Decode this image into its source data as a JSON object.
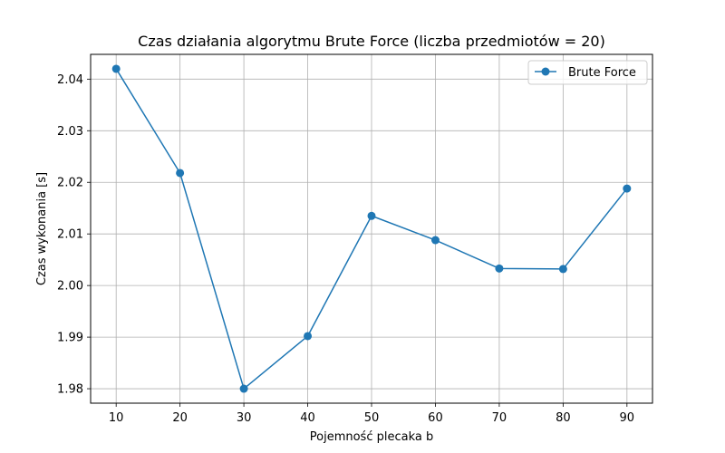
{
  "chart_data": {
    "type": "line",
    "title": "Czas działania algorytmu Brute Force (liczba przedmiotów = 20)",
    "xlabel": "Pojemność plecaka b",
    "ylabel": "Czas wykonania [s]",
    "x": [
      10,
      20,
      30,
      40,
      50,
      60,
      70,
      80,
      90
    ],
    "series": [
      {
        "name": "Brute Force",
        "color": "#1f77b4",
        "marker": "circle",
        "values": [
          2.042,
          2.0218,
          1.98,
          1.9902,
          2.0135,
          2.0088,
          2.0033,
          2.0032,
          2.0188
        ]
      }
    ],
    "xlim": [
      6,
      94
    ],
    "ylim": [
      1.9772,
      2.0448
    ],
    "xticks": [
      "10",
      "20",
      "30",
      "40",
      "50",
      "60",
      "70",
      "80",
      "90"
    ],
    "yticks": [
      "1.98",
      "1.99",
      "2.00",
      "2.01",
      "2.02",
      "2.03",
      "2.04"
    ],
    "grid": true,
    "legend_position": "top-right"
  }
}
